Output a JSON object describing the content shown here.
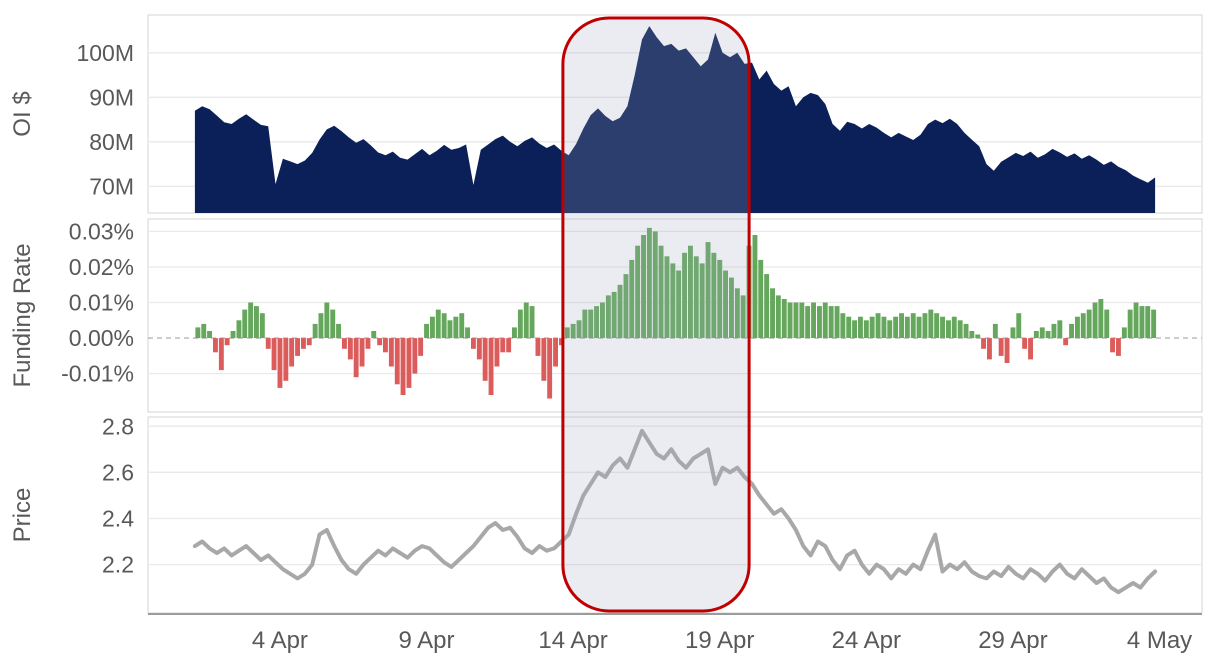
{
  "chart_data": {
    "type": "multi-panel",
    "title": "",
    "x": {
      "unit": "day-of-april",
      "domain_days": [
        -0.5,
        35.45
      ],
      "ticks": [
        {
          "day": 4,
          "label": "4 Apr"
        },
        {
          "day": 9,
          "label": "9 Apr"
        },
        {
          "day": 14,
          "label": "14 Apr"
        },
        {
          "day": 19,
          "label": "19 Apr"
        },
        {
          "day": 24,
          "label": "24 Apr"
        },
        {
          "day": 29,
          "label": "29 Apr"
        },
        {
          "day": 34,
          "label": "4 May"
        }
      ]
    },
    "style": {
      "panel_border": "#d6d6d6",
      "grid": "#eaeaea",
      "zero_line": "#b5b5b5",
      "axis_line": "#9b9b9b",
      "text": "#595959"
    },
    "highlight": {
      "label": "highlighted-period-14-to-19-apr",
      "start_day": 13.65,
      "end_day": 20.0,
      "stroke": "#c00000",
      "stroke_width": 3,
      "fill": "rgba(160,170,190,0.22)",
      "corner_radius": 46
    },
    "panels": [
      {
        "id": "oi",
        "type": "area",
        "ylabel": "OI $",
        "color": "#0b2058",
        "ylim": [
          64,
          108.5
        ],
        "yticks": [
          {
            "value": 100,
            "label": "100M"
          },
          {
            "value": 90,
            "label": "90M"
          },
          {
            "value": 80,
            "label": "80M"
          },
          {
            "value": 70,
            "label": "70M"
          }
        ],
        "start_day": 1.1,
        "step_days": 0.25,
        "values": [
          87.0,
          88.0,
          87.3,
          85.9,
          84.4,
          84.0,
          85.2,
          86.2,
          85.0,
          83.8,
          83.5,
          70.5,
          76.2,
          75.6,
          75.0,
          75.8,
          77.5,
          80.5,
          82.8,
          83.6,
          82.4,
          81.0,
          79.8,
          80.6,
          79.2,
          77.6,
          77.0,
          77.8,
          76.4,
          76.0,
          77.2,
          78.4,
          77.0,
          78.0,
          79.3,
          78.2,
          78.6,
          79.4,
          70.3,
          78.2,
          79.4,
          80.6,
          81.4,
          80.0,
          79.0,
          80.2,
          81.0,
          79.6,
          78.6,
          79.4,
          78.0,
          77.0,
          79.5,
          83.0,
          86.0,
          87.5,
          85.8,
          84.6,
          85.4,
          88.0,
          95.0,
          103.0,
          106.0,
          103.5,
          101.5,
          102.0,
          100.5,
          101.0,
          99.0,
          97.0,
          98.5,
          104.5,
          100.0,
          99.0,
          100.0,
          97.5,
          97.8,
          94.0,
          96.0,
          93.0,
          91.5,
          92.5,
          88.0,
          90.0,
          91.0,
          90.5,
          88.5,
          84.0,
          82.5,
          84.5,
          84.0,
          83.0,
          84.0,
          83.2,
          82.0,
          81.0,
          82.0,
          81.2,
          80.4,
          81.6,
          84.0,
          85.0,
          84.2,
          85.2,
          84.0,
          82.0,
          80.5,
          79.0,
          75.0,
          73.5,
          75.5,
          76.5,
          77.5,
          76.8,
          77.8,
          76.4,
          77.2,
          78.4,
          77.6,
          76.6,
          77.4,
          76.2,
          77.0,
          76.0,
          74.8,
          75.6,
          74.4,
          73.6,
          72.4,
          71.6,
          70.8,
          72.0
        ]
      },
      {
        "id": "funding",
        "type": "bar",
        "ylabel": "Funding Rate",
        "pos_color": "#65a75c",
        "neg_color": "#dc5c5c",
        "ylim": [
          -0.0208,
          0.0335
        ],
        "yticks": [
          {
            "value": 0.03,
            "label": "0.03%"
          },
          {
            "value": 0.02,
            "label": "0.02%"
          },
          {
            "value": 0.01,
            "label": "0.01%"
          },
          {
            "value": 0.0,
            "label": "0.00%"
          },
          {
            "value": -0.01,
            "label": "-0.01%"
          }
        ],
        "start_day": 1.2,
        "step_days": 0.2,
        "values": [
          0.003,
          0.004,
          0.002,
          -0.004,
          -0.009,
          -0.002,
          0.002,
          0.005,
          0.008,
          0.01,
          0.009,
          0.007,
          -0.003,
          -0.009,
          -0.014,
          -0.012,
          -0.008,
          -0.005,
          -0.003,
          -0.002,
          0.004,
          0.007,
          0.01,
          0.008,
          0.004,
          -0.003,
          -0.006,
          -0.011,
          -0.008,
          -0.003,
          0.002,
          -0.002,
          -0.004,
          -0.008,
          -0.013,
          -0.016,
          -0.014,
          -0.01,
          -0.005,
          0.004,
          0.006,
          0.008,
          0.007,
          0.005,
          0.006,
          0.007,
          0.003,
          -0.003,
          -0.006,
          -0.012,
          -0.016,
          -0.008,
          -0.004,
          -0.004,
          0.003,
          0.008,
          0.01,
          0.009,
          -0.005,
          -0.012,
          -0.017,
          -0.008,
          -0.002,
          0.003,
          0.004,
          0.005,
          0.008,
          0.008,
          0.009,
          0.01,
          0.012,
          0.013,
          0.015,
          0.018,
          0.022,
          0.026,
          0.029,
          0.031,
          0.03,
          0.026,
          0.023,
          0.021,
          0.019,
          0.024,
          0.026,
          0.023,
          0.021,
          0.027,
          0.024,
          0.022,
          0.019,
          0.017,
          0.014,
          0.012,
          0.026,
          0.029,
          0.022,
          0.018,
          0.014,
          0.012,
          0.011,
          0.01,
          0.01,
          0.01,
          0.009,
          0.01,
          0.009,
          0.01,
          0.009,
          0.009,
          0.007,
          0.006,
          0.005,
          0.006,
          0.005,
          0.006,
          0.007,
          0.006,
          0.005,
          0.006,
          0.007,
          0.006,
          0.007,
          0.006,
          0.007,
          0.008,
          0.007,
          0.006,
          0.005,
          0.006,
          0.005,
          0.004,
          0.002,
          0.001,
          -0.003,
          -0.006,
          0.004,
          -0.005,
          -0.007,
          0.003,
          0.007,
          -0.003,
          -0.006,
          0.002,
          0.003,
          0.002,
          0.004,
          0.005,
          -0.002,
          0.004,
          0.006,
          0.007,
          0.008,
          0.01,
          0.011,
          0.008,
          -0.004,
          -0.005,
          0.003,
          0.008,
          0.01,
          0.009,
          0.009,
          0.008
        ]
      },
      {
        "id": "price",
        "type": "line",
        "ylabel": "Price",
        "color": "#a8a8a8",
        "ylim": [
          1.99,
          2.84
        ],
        "yticks": [
          {
            "value": 2.8,
            "label": "2.8"
          },
          {
            "value": 2.6,
            "label": "2.6"
          },
          {
            "value": 2.4,
            "label": "2.4"
          },
          {
            "value": 2.2,
            "label": "2.2"
          }
        ],
        "start_day": 1.1,
        "step_days": 0.25,
        "values": [
          2.28,
          2.3,
          2.27,
          2.25,
          2.27,
          2.24,
          2.26,
          2.28,
          2.25,
          2.22,
          2.24,
          2.21,
          2.18,
          2.16,
          2.14,
          2.16,
          2.2,
          2.33,
          2.35,
          2.28,
          2.22,
          2.18,
          2.16,
          2.2,
          2.23,
          2.26,
          2.24,
          2.27,
          2.25,
          2.23,
          2.26,
          2.28,
          2.27,
          2.24,
          2.21,
          2.19,
          2.22,
          2.25,
          2.28,
          2.32,
          2.36,
          2.38,
          2.35,
          2.36,
          2.32,
          2.27,
          2.25,
          2.28,
          2.26,
          2.27,
          2.3,
          2.33,
          2.42,
          2.5,
          2.55,
          2.6,
          2.58,
          2.63,
          2.66,
          2.62,
          2.7,
          2.78,
          2.73,
          2.68,
          2.66,
          2.7,
          2.65,
          2.62,
          2.66,
          2.68,
          2.7,
          2.55,
          2.62,
          2.6,
          2.62,
          2.58,
          2.55,
          2.5,
          2.46,
          2.42,
          2.44,
          2.4,
          2.35,
          2.28,
          2.24,
          2.3,
          2.28,
          2.22,
          2.18,
          2.24,
          2.26,
          2.2,
          2.16,
          2.2,
          2.18,
          2.14,
          2.18,
          2.16,
          2.2,
          2.18,
          2.26,
          2.33,
          2.17,
          2.2,
          2.18,
          2.21,
          2.17,
          2.15,
          2.14,
          2.17,
          2.15,
          2.19,
          2.16,
          2.14,
          2.18,
          2.16,
          2.13,
          2.17,
          2.2,
          2.16,
          2.14,
          2.18,
          2.15,
          2.12,
          2.14,
          2.1,
          2.08,
          2.1,
          2.12,
          2.1,
          2.14,
          2.17
        ]
      }
    ]
  }
}
